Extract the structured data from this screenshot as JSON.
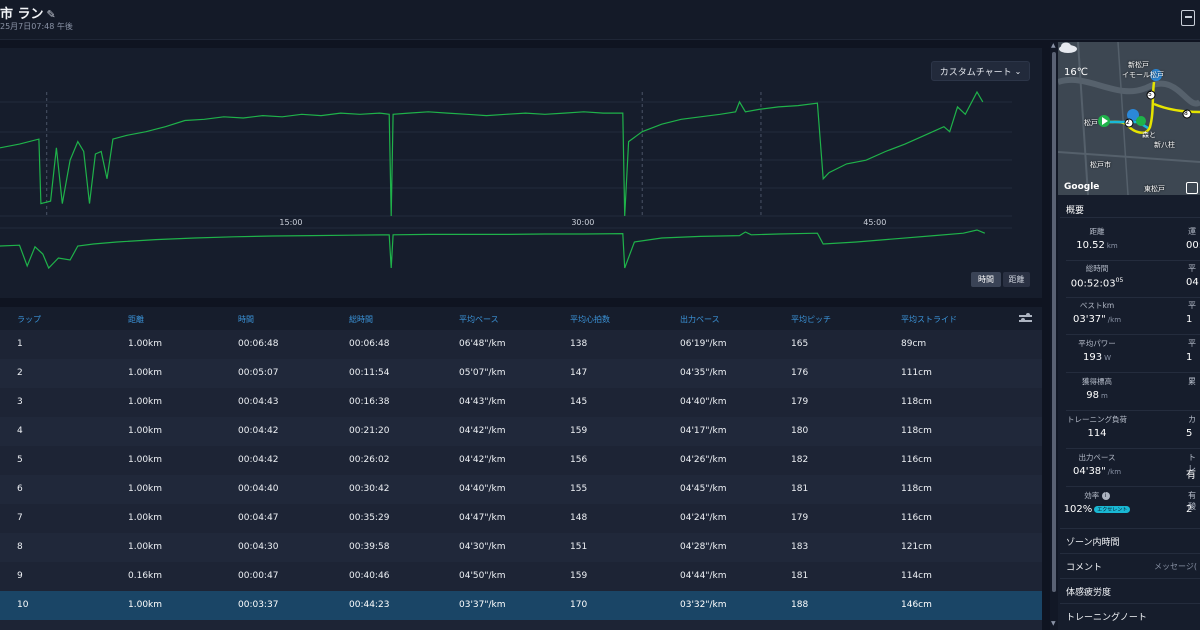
{
  "header": {
    "title": "市 ラン",
    "subtitle": "25月7日07:48 午後"
  },
  "chart": {
    "custom_chart_label": "カスタムチャート",
    "x_ticks": [
      "15:00",
      "30:00",
      "45:00"
    ],
    "toggle_time": "時間",
    "toggle_distance": "距離",
    "line_color": "#1fb24a"
  },
  "chart_data": [
    {
      "type": "line",
      "title": "",
      "xlabel": "",
      "ylabel": "",
      "x_unit": "minutes",
      "x_tick_labels": [
        "15:00",
        "30:00",
        "45:00"
      ],
      "xlim": [
        0,
        52
      ],
      "series": [
        {
          "values": [
            [
              0.0,
              55
            ],
            [
              1.0,
              58
            ],
            [
              2.0,
              62
            ],
            [
              2.1,
              10
            ],
            [
              2.6,
              12
            ],
            [
              2.9,
              55
            ],
            [
              3.2,
              10
            ],
            [
              3.6,
              45
            ],
            [
              4.0,
              60
            ],
            [
              4.3,
              52
            ],
            [
              4.6,
              10
            ],
            [
              4.9,
              50
            ],
            [
              5.2,
              52
            ],
            [
              5.5,
              30
            ],
            [
              5.8,
              62
            ],
            [
              6.5,
              65
            ],
            [
              7.5,
              68
            ],
            [
              8.5,
              72
            ],
            [
              9.5,
              77
            ],
            [
              10.5,
              78
            ],
            [
              11.5,
              80
            ],
            [
              12.5,
              79
            ],
            [
              13.5,
              81
            ],
            [
              14.5,
              80
            ],
            [
              15.5,
              82
            ],
            [
              16.5,
              81
            ],
            [
              17.5,
              83
            ],
            [
              18.5,
              82
            ],
            [
              19.5,
              83
            ],
            [
              20.0,
              82
            ],
            [
              20.1,
              0
            ],
            [
              20.2,
              82
            ],
            [
              21.0,
              83
            ],
            [
              22.0,
              84
            ],
            [
              23.0,
              83
            ],
            [
              24.0,
              82
            ],
            [
              25.0,
              81
            ],
            [
              26.0,
              82
            ],
            [
              27.0,
              83
            ],
            [
              28.0,
              82
            ],
            [
              29.0,
              83
            ],
            [
              30.0,
              84
            ],
            [
              31.0,
              83
            ],
            [
              32.0,
              83
            ],
            [
              32.1,
              0
            ],
            [
              32.3,
              60
            ],
            [
              33.0,
              68
            ],
            [
              34.0,
              74
            ],
            [
              35.0,
              78
            ],
            [
              36.0,
              80
            ],
            [
              37.0,
              82
            ],
            [
              37.8,
              84
            ],
            [
              38.0,
              92
            ],
            [
              38.3,
              84
            ],
            [
              39.0,
              86
            ],
            [
              40.0,
              88
            ],
            [
              41.0,
              89
            ],
            [
              42.0,
              91
            ],
            [
              42.3,
              30
            ],
            [
              42.6,
              35
            ],
            [
              43.5,
              42
            ],
            [
              44.5,
              45
            ],
            [
              45.5,
              52
            ],
            [
              46.5,
              58
            ],
            [
              47.5,
              65
            ],
            [
              48.5,
              72
            ],
            [
              48.8,
              68
            ],
            [
              49.2,
              88
            ],
            [
              49.6,
              82
            ],
            [
              50.2,
              100
            ],
            [
              50.5,
              92
            ]
          ],
          "color": "#1fb24a"
        }
      ]
    },
    {
      "type": "line",
      "title": "",
      "xlabel": "",
      "ylabel": "",
      "x_unit": "minutes",
      "xlim": [
        0,
        52
      ],
      "series": [
        {
          "values": [
            [
              0.0,
              60
            ],
            [
              1.0,
              62
            ],
            [
              1.4,
              10
            ],
            [
              1.8,
              58
            ],
            [
              2.2,
              40
            ],
            [
              2.5,
              5
            ],
            [
              3.0,
              30
            ],
            [
              3.6,
              25
            ],
            [
              4.0,
              60
            ],
            [
              4.8,
              65
            ],
            [
              6.0,
              70
            ],
            [
              8.0,
              76
            ],
            [
              10.0,
              80
            ],
            [
              12.0,
              83
            ],
            [
              14.0,
              85
            ],
            [
              16.0,
              86
            ],
            [
              18.0,
              87
            ],
            [
              20.0,
              88
            ],
            [
              20.1,
              5
            ],
            [
              20.2,
              88
            ],
            [
              22.0,
              89
            ],
            [
              24.0,
              89
            ],
            [
              26.0,
              89
            ],
            [
              28.0,
              90
            ],
            [
              30.0,
              90
            ],
            [
              32.0,
              91
            ],
            [
              32.1,
              5
            ],
            [
              32.6,
              70
            ],
            [
              34.0,
              80
            ],
            [
              36.0,
              84
            ],
            [
              38.0,
              86
            ],
            [
              38.3,
              95
            ],
            [
              38.6,
              88
            ],
            [
              40.0,
              90
            ],
            [
              42.0,
              92
            ],
            [
              42.3,
              65
            ],
            [
              44.0,
              70
            ],
            [
              46.0,
              78
            ],
            [
              48.0,
              86
            ],
            [
              49.5,
              92
            ],
            [
              50.2,
              100
            ],
            [
              50.6,
              92
            ]
          ],
          "color": "#1fb24a"
        }
      ]
    }
  ],
  "laps": {
    "columns": [
      "ラップ",
      "距離",
      "時間",
      "総時間",
      "平均ペース",
      "平均心拍数",
      "出力ペース",
      "平均ピッチ",
      "平均ストライド"
    ],
    "rows": [
      [
        "1",
        "1.00km",
        "00:06:48",
        "00:06:48",
        "06'48\"/km",
        "138",
        "06'19\"/km",
        "165",
        "89cm"
      ],
      [
        "2",
        "1.00km",
        "00:05:07",
        "00:11:54",
        "05'07\"/km",
        "147",
        "04'35\"/km",
        "176",
        "111cm"
      ],
      [
        "3",
        "1.00km",
        "00:04:43",
        "00:16:38",
        "04'43\"/km",
        "145",
        "04'40\"/km",
        "179",
        "118cm"
      ],
      [
        "4",
        "1.00km",
        "00:04:42",
        "00:21:20",
        "04'42\"/km",
        "159",
        "04'17\"/km",
        "180",
        "118cm"
      ],
      [
        "5",
        "1.00km",
        "00:04:42",
        "00:26:02",
        "04'42\"/km",
        "156",
        "04'26\"/km",
        "182",
        "116cm"
      ],
      [
        "6",
        "1.00km",
        "00:04:40",
        "00:30:42",
        "04'40\"/km",
        "155",
        "04'45\"/km",
        "181",
        "118cm"
      ],
      [
        "7",
        "1.00km",
        "00:04:47",
        "00:35:29",
        "04'47\"/km",
        "148",
        "04'24\"/km",
        "179",
        "116cm"
      ],
      [
        "8",
        "1.00km",
        "00:04:30",
        "00:39:58",
        "04'30\"/km",
        "151",
        "04'28\"/km",
        "183",
        "121cm"
      ],
      [
        "9",
        "0.16km",
        "00:00:47",
        "00:40:46",
        "04'50\"/km",
        "159",
        "04'44\"/km",
        "181",
        "114cm"
      ],
      [
        "10",
        "1.00km",
        "00:03:37",
        "00:44:23",
        "03'37\"/km",
        "170",
        "03'32\"/km",
        "188",
        "146cm"
      ]
    ],
    "selected_row": 9
  },
  "map": {
    "temperature": "16℃",
    "labels": [
      "新松戸",
      "イモール松戸",
      "松戸",
      "森と",
      "新八柱",
      "松戸市",
      "東松戸"
    ],
    "markers": [
      "5",
      "8",
      "2"
    ],
    "attribution": "Google"
  },
  "summary": {
    "title": "概要",
    "stats": [
      {
        "label": "距離",
        "value": "10.52",
        "unit": "km"
      },
      {
        "label": "総時間",
        "value": "00:52:03",
        "sup": "05",
        "unit": ""
      },
      {
        "label": "ベストkm",
        "value": "03'37\"",
        "unit": "/km"
      },
      {
        "label": "平均パワー",
        "value": "193",
        "unit": "W"
      },
      {
        "label": "獲得標高",
        "value": "98",
        "unit": "m"
      },
      {
        "label": "トレーニング負荷",
        "value": "114",
        "unit": ""
      },
      {
        "label": "出力ペース",
        "value": "04'38\"",
        "unit": "/km"
      },
      {
        "label": "効率",
        "value": "102%",
        "unit": "",
        "badge": "エクセレント"
      }
    ],
    "right_col_labels": [
      "運",
      "平",
      "平",
      "平",
      "累",
      "カ",
      "トレ",
      "有酸"
    ],
    "right_col_values": [
      "00:",
      "04",
      "1",
      "1",
      "",
      "5",
      "有",
      "2"
    ]
  },
  "sidebar_sections": [
    {
      "label": "ゾーン内時間",
      "right": ""
    },
    {
      "label": "コメント",
      "right": "メッセージ("
    },
    {
      "label": "体感疲労度",
      "right": ""
    },
    {
      "label": "トレーニングノート",
      "right": ""
    }
  ]
}
